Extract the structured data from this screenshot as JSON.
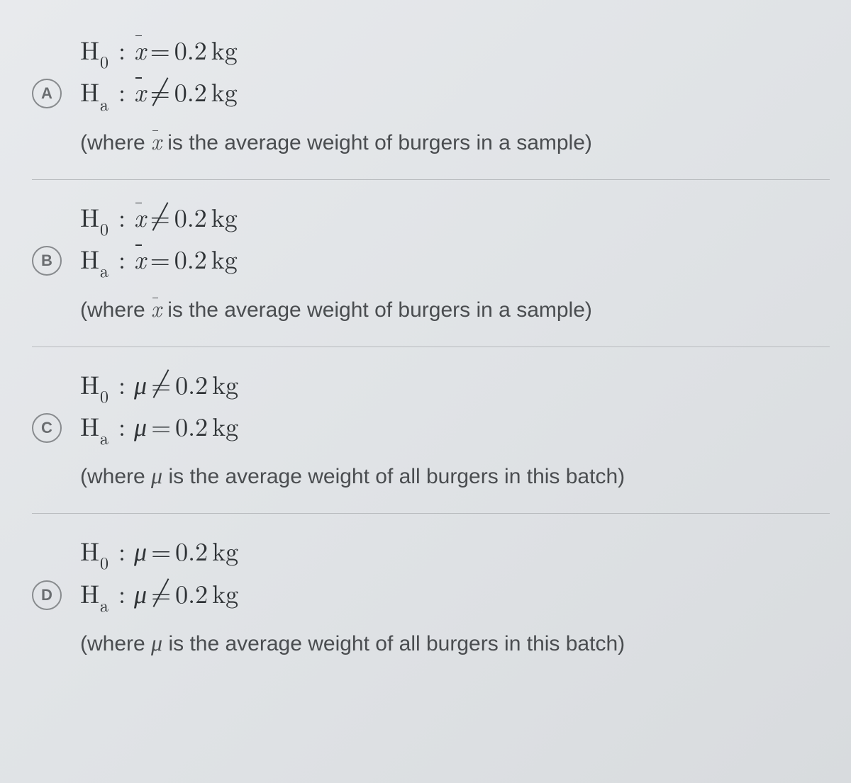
{
  "value": "0.2",
  "unit": "kg",
  "xbar_desc_prefix": "(where ",
  "xbar_desc_suffix": " is the average weight of burgers in a sample)",
  "mu_desc_prefix": "(where ",
  "mu_desc_suffix": " is the average weight of all burgers in this batch)",
  "options": {
    "A": {
      "letter": "A",
      "h0_symbol": "xbar",
      "h0_rel": "eq",
      "ha_symbol": "xbar",
      "ha_rel": "neq",
      "desc_type": "xbar"
    },
    "B": {
      "letter": "B",
      "h0_symbol": "xbar",
      "h0_rel": "neq",
      "ha_symbol": "xbar",
      "ha_rel": "eq",
      "desc_type": "xbar"
    },
    "C": {
      "letter": "C",
      "h0_symbol": "mu",
      "h0_rel": "neq",
      "ha_symbol": "mu",
      "ha_rel": "eq",
      "desc_type": "mu"
    },
    "D": {
      "letter": "D",
      "h0_symbol": "mu",
      "h0_rel": "eq",
      "ha_symbol": "mu",
      "ha_rel": "neq",
      "desc_type": "mu"
    }
  },
  "colors": {
    "text": "#2f3336",
    "desc_text": "#4a4d50",
    "badge_border": "#888b8e",
    "divider": "#b8bbbe",
    "bg_start": "#e8eaed",
    "bg_end": "#d8dbde"
  },
  "font_sizes": {
    "math_pt": 36,
    "sub_pt": 24,
    "desc_pt": 30,
    "badge_pt": 22
  }
}
